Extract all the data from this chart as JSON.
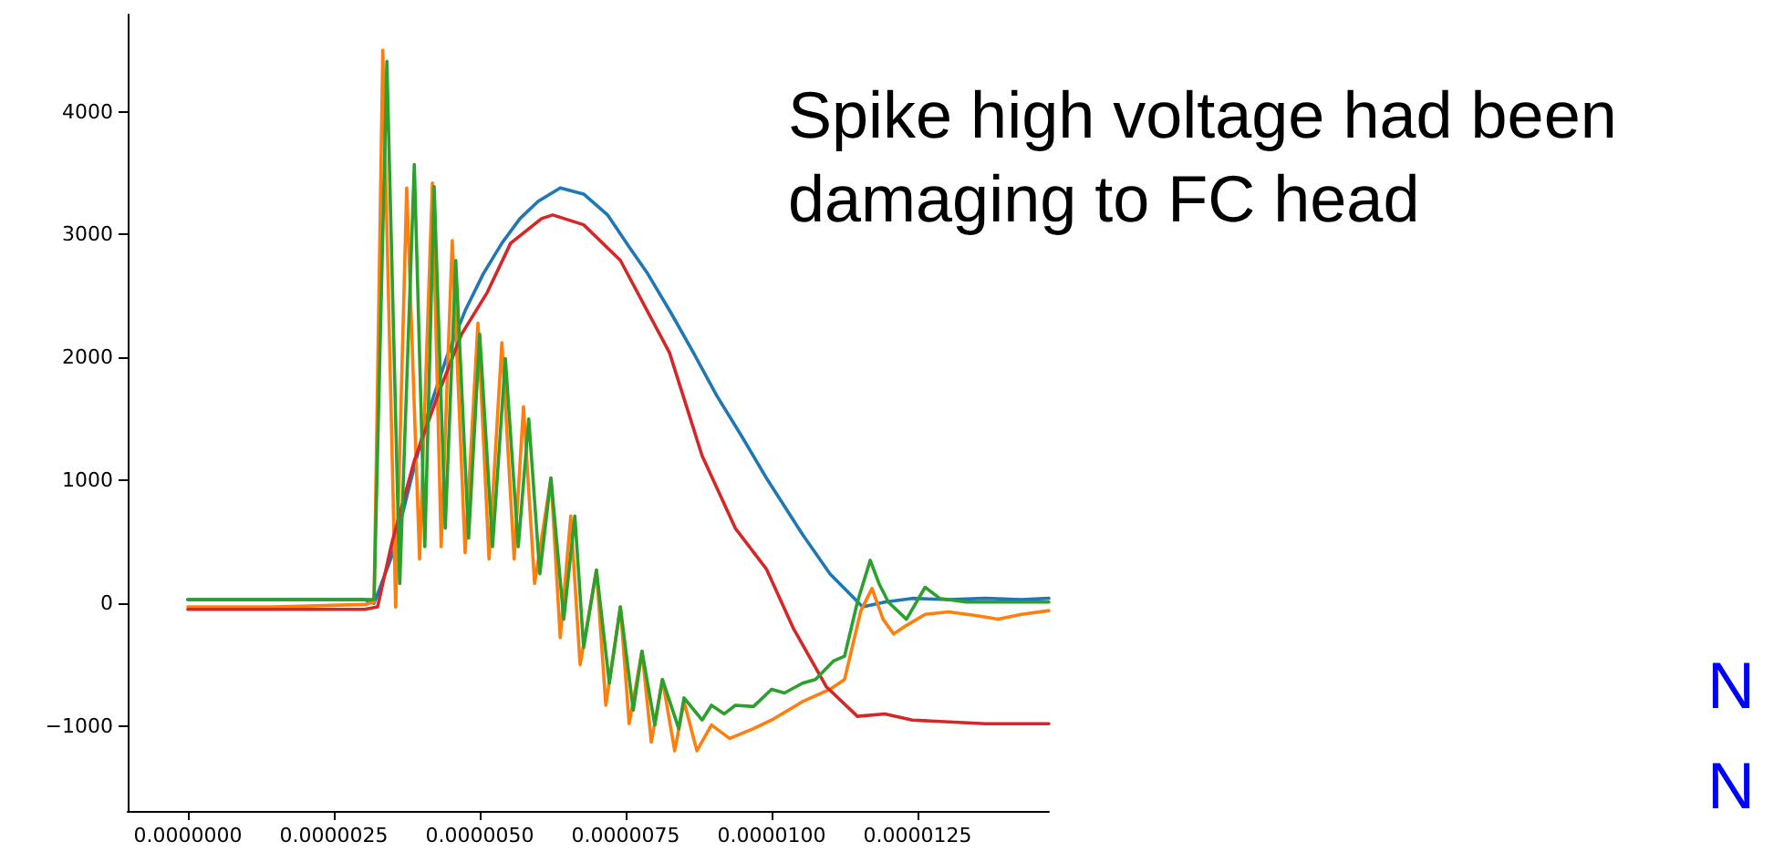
{
  "chart_data": {
    "type": "line",
    "marker": "none",
    "line_style": "solid",
    "grid": false,
    "xlim": [
      -1.03e-06,
      1.475e-05
    ],
    "xticks": [
      {
        "value": 0,
        "label": "0.0000000"
      },
      {
        "value": 2.5e-06,
        "label": "0.0000025"
      },
      {
        "value": 5e-06,
        "label": "0.0000050"
      },
      {
        "value": 7.5e-06,
        "label": "0.0000075"
      },
      {
        "value": 1e-05,
        "label": "0.0000100"
      },
      {
        "value": 1.25e-05,
        "label": "0.0000125"
      }
    ],
    "ylim": [
      -1690,
      4790
    ],
    "yticks": [
      -1000,
      0,
      1000,
      2000,
      3000,
      4000
    ],
    "annotations": [
      "Spike high voltage had been damaging to FC head",
      "N",
      "N"
    ],
    "series": [
      {
        "color": "#1f77b4",
        "x": [
          0,
          1.47e-06,
          3.03e-06,
          3.19e-06,
          3.5e-06,
          3.81e-06,
          4.13e-06,
          4.44e-06,
          4.75e-06,
          5.06e-06,
          5.38e-06,
          5.69e-06,
          6e-06,
          6.38e-06,
          6.78e-06,
          7.19e-06,
          7.56e-06,
          7.88e-06,
          8.28e-06,
          8.66e-06,
          9.06e-06,
          9.5e-06,
          9.91e-06,
          1.053e-05,
          1.1e-05,
          1.156e-05,
          1.194e-05,
          1.241e-05,
          1.303e-05,
          1.366e-05,
          1.428e-05,
          1.475e-05
        ],
        "values": [
          30,
          30,
          30,
          0,
          390,
          980,
          1570,
          2010,
          2380,
          2680,
          2930,
          3130,
          3270,
          3380,
          3330,
          3160,
          2900,
          2680,
          2360,
          2040,
          1690,
          1350,
          1020,
          560,
          240,
          -30,
          10,
          40,
          30,
          40,
          30,
          40
        ]
      },
      {
        "color": "#ff7f0e",
        "x": [
          0,
          1.47e-06,
          3.03e-06,
          3.19e-06,
          3.34e-06,
          3.56e-06,
          3.75e-06,
          3.97e-06,
          4.19e-06,
          4.34e-06,
          4.53e-06,
          4.75e-06,
          4.97e-06,
          5.16e-06,
          5.38e-06,
          5.59e-06,
          5.75e-06,
          5.94e-06,
          6.22e-06,
          6.38e-06,
          6.56e-06,
          6.72e-06,
          7e-06,
          7.16e-06,
          7.41e-06,
          7.56e-06,
          7.78e-06,
          7.94e-06,
          8.13e-06,
          8.34e-06,
          8.5e-06,
          8.72e-06,
          8.97e-06,
          9.28e-06,
          9.69e-06,
          1e-05,
          1.053e-05,
          1.1e-05,
          1.125e-05,
          1.153e-05,
          1.172e-05,
          1.191e-05,
          1.209e-05,
          1.231e-05,
          1.263e-05,
          1.303e-05,
          1.35e-05,
          1.388e-05,
          1.428e-05,
          1.475e-05
        ],
        "values": [
          -30,
          -30,
          -10,
          10,
          4500,
          -30,
          3380,
          360,
          3420,
          460,
          2950,
          410,
          2280,
          360,
          2120,
          360,
          1600,
          160,
          1020,
          -280,
          710,
          -500,
          270,
          -830,
          -30,
          -980,
          -390,
          -1130,
          -620,
          -1200,
          -800,
          -1200,
          -990,
          -1100,
          -1020,
          -950,
          -800,
          -700,
          -620,
          -60,
          120,
          -130,
          -250,
          -180,
          -90,
          -70,
          -100,
          -130,
          -90,
          -60
        ]
      },
      {
        "color": "#d62728",
        "x": [
          0,
          1.47e-06,
          3.03e-06,
          3.25e-06,
          3.5e-06,
          3.88e-06,
          4.28e-06,
          4.69e-06,
          5.13e-06,
          5.53e-06,
          6.06e-06,
          6.25e-06,
          6.78e-06,
          7.41e-06,
          8.25e-06,
          8.81e-06,
          9.38e-06,
          9.91e-06,
          1.038e-05,
          1.094e-05,
          1.147e-05,
          1.194e-05,
          1.241e-05,
          1.366e-05,
          1.475e-05
        ],
        "values": [
          -50,
          -50,
          -50,
          -30,
          500,
          1160,
          1690,
          2190,
          2530,
          2930,
          3130,
          3160,
          3080,
          2790,
          2040,
          1200,
          610,
          280,
          -210,
          -680,
          -920,
          -900,
          -950,
          -980,
          -980
        ]
      },
      {
        "color": "#2ca02c",
        "x": [
          0,
          1.47e-06,
          3.03e-06,
          3.19e-06,
          3.41e-06,
          3.63e-06,
          3.88e-06,
          4.06e-06,
          4.22e-06,
          4.41e-06,
          4.59e-06,
          4.81e-06,
          5e-06,
          5.22e-06,
          5.44e-06,
          5.66e-06,
          5.84e-06,
          6.03e-06,
          6.22e-06,
          6.44e-06,
          6.63e-06,
          6.78e-06,
          7e-06,
          7.22e-06,
          7.41e-06,
          7.63e-06,
          7.78e-06,
          8e-06,
          8.13e-06,
          8.41e-06,
          8.5e-06,
          8.81e-06,
          8.97e-06,
          9.19e-06,
          9.38e-06,
          9.69e-06,
          1e-05,
          1.022e-05,
          1.053e-05,
          1.075e-05,
          1.106e-05,
          1.125e-05,
          1.147e-05,
          1.169e-05,
          1.184e-05,
          1.2e-05,
          1.231e-05,
          1.263e-05,
          1.288e-05,
          1.334e-05,
          1.397e-05,
          1.475e-05
        ],
        "values": [
          30,
          30,
          30,
          30,
          4410,
          160,
          3570,
          460,
          3390,
          610,
          2790,
          530,
          2190,
          460,
          1990,
          460,
          1500,
          240,
          1020,
          -130,
          710,
          -360,
          270,
          -650,
          -30,
          -870,
          -390,
          -990,
          -620,
          -1020,
          -770,
          -950,
          -830,
          -900,
          -830,
          -840,
          -700,
          -730,
          -650,
          -620,
          -470,
          -430,
          10,
          350,
          160,
          10,
          -130,
          130,
          40,
          10,
          10,
          10
        ]
      }
    ]
  }
}
